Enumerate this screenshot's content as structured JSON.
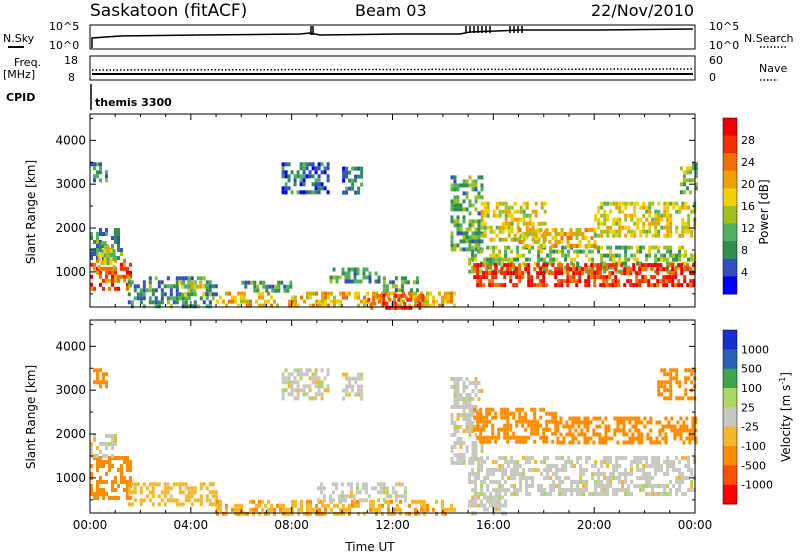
{
  "header": {
    "station": "Saskatoon (fitACF)",
    "beam": "Beam 03",
    "date": "22/Nov/2010"
  },
  "status_panels": {
    "nsky_label": "N.Sky",
    "nsky_ticks": [
      "10^5",
      "10^0"
    ],
    "nsearch_label": "N.Search",
    "nsearch_ticks": [
      "10^5",
      "10^0"
    ],
    "freq_label": "Freq.",
    "freq_unit": "[MHz]",
    "freq_ticks": [
      "18",
      "8"
    ],
    "nave_label": "Nave",
    "nave_ticks": [
      "60",
      "0"
    ],
    "cpid_label": "CPID",
    "cpid_value": "themis 3300"
  },
  "chart_data": [
    {
      "type": "heatmap",
      "name": "power",
      "xlabel": "",
      "ylabel": "Slant Range [km]",
      "x_ticks": [
        "00:00",
        "04:00",
        "08:00",
        "12:00",
        "16:00",
        "20:00",
        "00:00"
      ],
      "xlim_hours": [
        0,
        24
      ],
      "ylim": [
        200,
        4600
      ],
      "y_ticks": [
        1000,
        2000,
        3000,
        4000
      ],
      "colorbar": {
        "label": "Power [dB]",
        "ticks": [
          "28",
          "24",
          "20",
          "16",
          "12",
          "8",
          "4"
        ],
        "colors": [
          "#0000ff",
          "#3050c0",
          "#2f8f4f",
          "#50b060",
          "#a0c020",
          "#f0d000",
          "#f0a000",
          "#f07000",
          "#f03000",
          "#f00000"
        ],
        "range": [
          0,
          30
        ]
      },
      "echo_regions": [
        {
          "t0": 0.0,
          "t1": 1.6,
          "r0": 600,
          "r1": 1300,
          "value": 24
        },
        {
          "t0": 0.0,
          "t1": 1.2,
          "r0": 1300,
          "r1": 2000,
          "value": 8
        },
        {
          "t0": 0.0,
          "t1": 0.6,
          "r0": 3100,
          "r1": 3500,
          "value": 8
        },
        {
          "t0": 0.3,
          "t1": 0.9,
          "r0": 1100,
          "r1": 1700,
          "value": 14
        },
        {
          "t0": 1.5,
          "t1": 5.0,
          "r0": 200,
          "r1": 900,
          "value": 8
        },
        {
          "t0": 3.5,
          "t1": 4.5,
          "r0": 500,
          "r1": 800,
          "value": 14
        },
        {
          "t0": 6.0,
          "t1": 8.0,
          "r0": 600,
          "r1": 800,
          "value": 8
        },
        {
          "t0": 7.6,
          "t1": 9.5,
          "r0": 2800,
          "r1": 3500,
          "value": 6
        },
        {
          "t0": 10.0,
          "t1": 10.8,
          "r0": 2800,
          "r1": 3400,
          "value": 6
        },
        {
          "t0": 5.0,
          "t1": 14.5,
          "r0": 200,
          "r1": 550,
          "value": 18
        },
        {
          "t0": 11.0,
          "t1": 13.2,
          "r0": 200,
          "r1": 500,
          "value": 26
        },
        {
          "t0": 9.5,
          "t1": 11.5,
          "r0": 800,
          "r1": 1100,
          "value": 8
        },
        {
          "t0": 11.5,
          "t1": 13.0,
          "r0": 550,
          "r1": 900,
          "value": 10
        },
        {
          "t0": 14.3,
          "t1": 15.5,
          "r0": 1500,
          "r1": 3200,
          "value": 10
        },
        {
          "t0": 15.0,
          "t1": 24.0,
          "r0": 1000,
          "r1": 1600,
          "value": 12
        },
        {
          "t0": 15.2,
          "t1": 24.0,
          "r0": 700,
          "r1": 1200,
          "value": 26
        },
        {
          "t0": 15.5,
          "t1": 18.0,
          "r0": 1700,
          "r1": 2600,
          "value": 16
        },
        {
          "t0": 17.0,
          "t1": 20.0,
          "r0": 1600,
          "r1": 2000,
          "value": 18
        },
        {
          "t0": 20.0,
          "t1": 24.0,
          "r0": 1800,
          "r1": 2600,
          "value": 16
        },
        {
          "t0": 23.4,
          "t1": 24.0,
          "r0": 2800,
          "r1": 3500,
          "value": 12
        }
      ]
    },
    {
      "type": "heatmap",
      "name": "velocity",
      "xlabel": "Time UT",
      "ylabel": "Slant Range [km]",
      "x_ticks": [
        "00:00",
        "04:00",
        "08:00",
        "12:00",
        "16:00",
        "20:00",
        "00:00"
      ],
      "xlim_hours": [
        0,
        24
      ],
      "ylim": [
        200,
        4600
      ],
      "y_ticks": [
        1000,
        2000,
        3000,
        4000
      ],
      "colorbar": {
        "label": "Velocity [m s^-1]",
        "ticks": [
          "1000",
          "500",
          "100",
          "25",
          "-25",
          "-100",
          "-500",
          "-1000"
        ],
        "colors": [
          "#ff0000",
          "#ff5000",
          "#ff8c00",
          "#f5b82a",
          "#c8c8c0",
          "#a8d860",
          "#3aa848",
          "#2860b8",
          "#1430d0"
        ]
      },
      "echo_regions": [
        {
          "t0": 0.0,
          "t1": 1.6,
          "r0": 500,
          "r1": 1500,
          "value": -300
        },
        {
          "t0": 0.0,
          "t1": 1.0,
          "r0": 1500,
          "r1": 2000,
          "value": 0
        },
        {
          "t0": 0.0,
          "t1": 0.6,
          "r0": 3100,
          "r1": 3500,
          "value": -300
        },
        {
          "t0": 1.5,
          "t1": 5.0,
          "r0": 400,
          "r1": 900,
          "value": -60
        },
        {
          "t0": 5.0,
          "t1": 14.5,
          "r0": 200,
          "r1": 500,
          "value": -80
        },
        {
          "t0": 7.6,
          "t1": 9.5,
          "r0": 2800,
          "r1": 3500,
          "value": 0
        },
        {
          "t0": 10.0,
          "t1": 10.8,
          "r0": 2800,
          "r1": 3400,
          "value": 0
        },
        {
          "t0": 9.0,
          "t1": 12.5,
          "r0": 500,
          "r1": 900,
          "value": 0
        },
        {
          "t0": 14.3,
          "t1": 15.5,
          "r0": 1300,
          "r1": 3300,
          "value": 0
        },
        {
          "t0": 15.0,
          "t1": 24.0,
          "r0": 600,
          "r1": 1500,
          "value": 0
        },
        {
          "t0": 15.2,
          "t1": 18.5,
          "r0": 1800,
          "r1": 2600,
          "value": -300
        },
        {
          "t0": 18.5,
          "t1": 24.0,
          "r0": 1800,
          "r1": 2400,
          "value": -300
        },
        {
          "t0": 22.5,
          "t1": 24.0,
          "r0": 2800,
          "r1": 3500,
          "value": -300
        },
        {
          "t0": 15.0,
          "t1": 16.5,
          "r0": 200,
          "r1": 600,
          "value": 0
        }
      ]
    }
  ]
}
